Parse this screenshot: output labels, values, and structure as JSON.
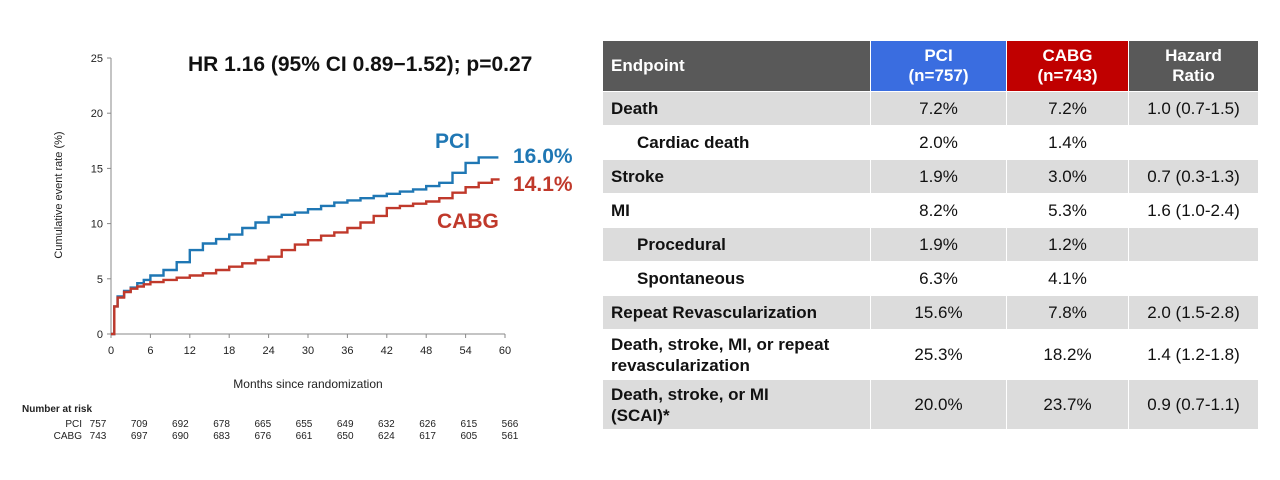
{
  "chart_data": {
    "type": "line",
    "title": "HR 1.16 (95% CI 0.89−1.52); p=0.27",
    "xlabel": "Months since randomization",
    "ylabel": "Cumulative event rate (%)",
    "xlim": [
      0,
      60
    ],
    "ylim": [
      0,
      25
    ],
    "xticks": [
      0,
      6,
      12,
      18,
      24,
      30,
      36,
      42,
      48,
      54,
      60
    ],
    "yticks": [
      0,
      5,
      10,
      15,
      20,
      25
    ],
    "grid": false,
    "series": [
      {
        "name": "PCI",
        "color": "#1f77b4",
        "end_label": "16.0%",
        "points": [
          [
            0,
            0
          ],
          [
            0.5,
            2.5
          ],
          [
            1,
            3.4
          ],
          [
            2,
            3.9
          ],
          [
            3,
            4.2
          ],
          [
            4,
            4.6
          ],
          [
            5,
            4.9
          ],
          [
            6,
            5.3
          ],
          [
            8,
            5.8
          ],
          [
            10,
            6.5
          ],
          [
            12,
            7.6
          ],
          [
            14,
            8.2
          ],
          [
            16,
            8.6
          ],
          [
            18,
            9.0
          ],
          [
            20,
            9.6
          ],
          [
            22,
            10.1
          ],
          [
            24,
            10.6
          ],
          [
            26,
            10.8
          ],
          [
            28,
            11.0
          ],
          [
            30,
            11.3
          ],
          [
            32,
            11.6
          ],
          [
            34,
            11.9
          ],
          [
            36,
            12.1
          ],
          [
            38,
            12.3
          ],
          [
            40,
            12.5
          ],
          [
            42,
            12.7
          ],
          [
            44,
            12.9
          ],
          [
            46,
            13.1
          ],
          [
            48,
            13.4
          ],
          [
            50,
            13.7
          ],
          [
            52,
            14.6
          ],
          [
            54,
            15.5
          ],
          [
            56,
            16.0
          ],
          [
            58,
            16.0
          ],
          [
            59,
            16.0
          ]
        ]
      },
      {
        "name": "CABG",
        "color": "#c0392b",
        "end_label": "14.1%",
        "points": [
          [
            0,
            0
          ],
          [
            0.5,
            2.5
          ],
          [
            1,
            3.3
          ],
          [
            2,
            3.8
          ],
          [
            3,
            4.1
          ],
          [
            4,
            4.3
          ],
          [
            5,
            4.5
          ],
          [
            6,
            4.7
          ],
          [
            8,
            4.9
          ],
          [
            10,
            5.1
          ],
          [
            12,
            5.3
          ],
          [
            14,
            5.5
          ],
          [
            16,
            5.8
          ],
          [
            18,
            6.1
          ],
          [
            20,
            6.4
          ],
          [
            22,
            6.7
          ],
          [
            24,
            7.0
          ],
          [
            26,
            7.6
          ],
          [
            28,
            8.1
          ],
          [
            30,
            8.5
          ],
          [
            32,
            8.9
          ],
          [
            34,
            9.2
          ],
          [
            36,
            9.6
          ],
          [
            38,
            10.1
          ],
          [
            40,
            10.7
          ],
          [
            42,
            11.4
          ],
          [
            44,
            11.6
          ],
          [
            46,
            11.8
          ],
          [
            48,
            12.0
          ],
          [
            50,
            12.3
          ],
          [
            52,
            12.8
          ],
          [
            54,
            13.3
          ],
          [
            56,
            13.7
          ],
          [
            58,
            14.0
          ],
          [
            59,
            14.1
          ]
        ]
      }
    ],
    "at_risk": {
      "label": "Number at risk",
      "rows": [
        {
          "name": "PCI",
          "values": [
            757,
            709,
            692,
            678,
            665,
            655,
            649,
            632,
            626,
            615,
            566
          ]
        },
        {
          "name": "CABG",
          "values": [
            743,
            697,
            690,
            683,
            676,
            661,
            650,
            624,
            617,
            605,
            561
          ]
        }
      ]
    }
  },
  "table": {
    "headers": {
      "endpoint": "Endpoint",
      "pci": [
        "PCI",
        "(n=757)"
      ],
      "cabg": [
        "CABG",
        "(n=743)"
      ],
      "hr": [
        "Hazard",
        "Ratio"
      ]
    },
    "rows": [
      {
        "endpoint": [
          "Death"
        ],
        "pci": "7.2%",
        "cabg": "7.2%",
        "hr": "1.0 (0.7-1.5)",
        "sub": false,
        "shade": true
      },
      {
        "endpoint": [
          "Cardiac death"
        ],
        "pci": "2.0%",
        "cabg": "1.4%",
        "hr": "",
        "sub": true,
        "shade": false
      },
      {
        "endpoint": [
          "Stroke"
        ],
        "pci": "1.9%",
        "cabg": "3.0%",
        "hr": "0.7 (0.3-1.3)",
        "sub": false,
        "shade": true
      },
      {
        "endpoint": [
          "MI"
        ],
        "pci": "8.2%",
        "cabg": "5.3%",
        "hr": "1.6 (1.0-2.4)",
        "sub": false,
        "shade": false
      },
      {
        "endpoint": [
          "Procedural"
        ],
        "pci": "1.9%",
        "cabg": "1.2%",
        "hr": "",
        "sub": true,
        "shade": true
      },
      {
        "endpoint": [
          "Spontaneous"
        ],
        "pci": "6.3%",
        "cabg": "4.1%",
        "hr": "",
        "sub": true,
        "shade": false
      },
      {
        "endpoint": [
          "Repeat Revascularization"
        ],
        "pci": "15.6%",
        "cabg": "7.8%",
        "hr": "2.0 (1.5-2.8)",
        "sub": false,
        "shade": true
      },
      {
        "endpoint": [
          "Death, stroke, MI, or repeat",
          "revascularization"
        ],
        "pci": "25.3%",
        "cabg": "18.2%",
        "hr": "1.4 (1.2-1.8)",
        "sub": false,
        "shade": false
      },
      {
        "endpoint": [
          "Death, stroke, or MI",
          "(SCAI)*"
        ],
        "pci": "20.0%",
        "cabg": "23.7%",
        "hr": "0.9 (0.7-1.1)",
        "sub": false,
        "shade": true
      }
    ]
  }
}
